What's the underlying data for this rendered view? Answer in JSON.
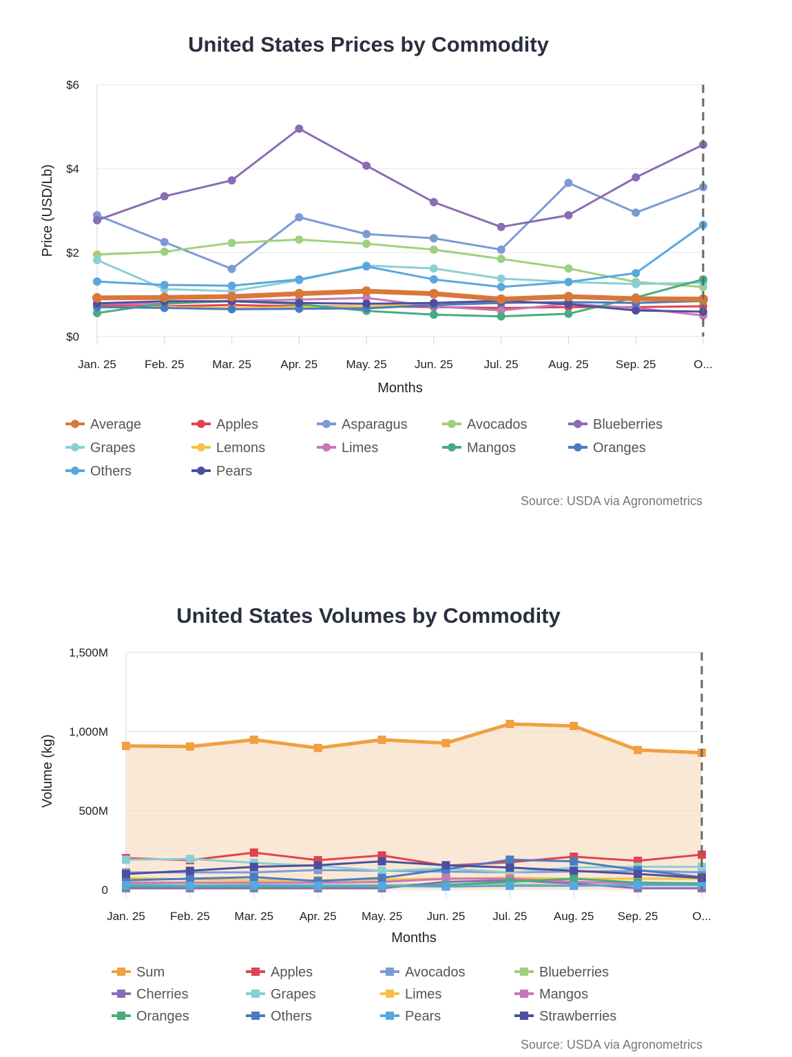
{
  "chart_data": [
    {
      "type": "line",
      "title": "United States Prices by Commodity",
      "xlabel": "Months",
      "ylabel": "Price (USD/Lb)",
      "categories": [
        "Jan. 25",
        "Feb. 25",
        "Mar. 25",
        "Apr. 25",
        "May. 25",
        "Jun. 25",
        "Jul. 25",
        "Aug. 25",
        "Sep. 25",
        "O..."
      ],
      "ylim": [
        0,
        6
      ],
      "yticks": [
        "$0",
        "$2",
        "$4",
        "$6"
      ],
      "ytick_values": [
        0,
        2,
        4,
        6
      ],
      "grid": true,
      "legend": "bottom",
      "source": "Source: USDA via Agronometrics",
      "series": [
        {
          "name": "Average",
          "color": "#d9773a",
          "values": [
            0.92,
            0.93,
            0.95,
            1.02,
            1.08,
            1.02,
            0.89,
            0.95,
            0.9,
            0.89
          ]
        },
        {
          "name": "Apples",
          "color": "#e0434f",
          "values": [
            0.75,
            0.72,
            0.75,
            0.72,
            0.72,
            0.7,
            0.68,
            0.7,
            0.7,
            0.72
          ]
        },
        {
          "name": "Asparagus",
          "color": "#7b9bd3",
          "values": [
            2.89,
            2.25,
            1.61,
            2.84,
            2.44,
            2.34,
            2.07,
            3.66,
            2.95,
            3.56
          ]
        },
        {
          "name": "Avocados",
          "color": "#a0cf7d",
          "values": [
            1.95,
            2.02,
            2.23,
            2.31,
            2.21,
            2.07,
            1.85,
            1.62,
            1.3,
            1.18
          ]
        },
        {
          "name": "Blueberries",
          "color": "#8a6bb5",
          "values": [
            2.77,
            3.34,
            3.72,
            4.95,
            4.07,
            3.2,
            2.61,
            2.89,
            3.79,
            4.57
          ]
        },
        {
          "name": "Grapes",
          "color": "#89cfd6",
          "values": [
            1.82,
            1.13,
            1.08,
            1.34,
            1.69,
            1.62,
            1.38,
            1.3,
            1.25,
            1.28
          ]
        },
        {
          "name": "Lemons",
          "color": "#f5c242",
          "values": [
            0.7,
            0.7,
            0.68,
            0.7,
            0.72,
            0.78,
            0.8,
            0.82,
            0.8,
            0.84
          ]
        },
        {
          "name": "Limes",
          "color": "#c877b5",
          "values": [
            0.78,
            0.78,
            0.85,
            0.88,
            0.92,
            0.72,
            0.62,
            0.78,
            0.68,
            0.5
          ]
        },
        {
          "name": "Mangos",
          "color": "#47ad7e",
          "values": [
            0.56,
            0.79,
            0.84,
            0.77,
            0.61,
            0.52,
            0.48,
            0.54,
            0.93,
            1.36
          ]
        },
        {
          "name": "Oranges",
          "color": "#4a7cc1",
          "values": [
            0.7,
            0.68,
            0.65,
            0.66,
            0.67,
            0.75,
            0.8,
            0.82,
            0.8,
            0.85
          ]
        },
        {
          "name": "Others",
          "color": "#5aa6de",
          "values": [
            1.31,
            1.23,
            1.21,
            1.36,
            1.67,
            1.36,
            1.18,
            1.3,
            1.51,
            2.66
          ]
        },
        {
          "name": "Pears",
          "color": "#4e4ea0",
          "values": [
            0.79,
            0.84,
            0.84,
            0.8,
            0.78,
            0.8,
            0.85,
            0.77,
            0.62,
            0.59
          ]
        }
      ]
    },
    {
      "type": "line",
      "title": "United States Volumes by Commodity",
      "xlabel": "Months",
      "ylabel": "Volume (kg)",
      "categories": [
        "Jan. 25",
        "Feb. 25",
        "Mar. 25",
        "Apr. 25",
        "May. 25",
        "Jun. 25",
        "Jul. 25",
        "Aug. 25",
        "Sep. 25",
        "O..."
      ],
      "ylim": [
        0,
        1500
      ],
      "yticks": [
        "0",
        "500M",
        "1,000M",
        "1,500M"
      ],
      "ytick_values": [
        0,
        500,
        1000,
        1500
      ],
      "yunit": "M",
      "grid": true,
      "legend": "bottom",
      "source": "Source: USDA via Agronometrics",
      "series": [
        {
          "name": "Sum",
          "color": "#f0a040",
          "area": true,
          "values": [
            909,
            905,
            948,
            896,
            948,
            927,
            1048,
            1035,
            883,
            866
          ]
        },
        {
          "name": "Apples",
          "color": "#e0434f",
          "values": [
            200,
            187,
            235,
            187,
            217,
            152,
            174,
            209,
            183,
            222
          ]
        },
        {
          "name": "Avocados",
          "color": "#7b9bd3",
          "values": [
            110,
            110,
            110,
            125,
            120,
            115,
            110,
            115,
            120,
            110
          ]
        },
        {
          "name": "Blueberries",
          "color": "#a0cf7d",
          "values": [
            35,
            30,
            30,
            30,
            30,
            35,
            35,
            30,
            30,
            30
          ]
        },
        {
          "name": "Cherries",
          "color": "#8a6bb5",
          "values": [
            10,
            10,
            10,
            10,
            10,
            50,
            60,
            40,
            10,
            10
          ]
        },
        {
          "name": "Grapes",
          "color": "#89cfd6",
          "values": [
            190,
            195,
            170,
            150,
            120,
            135,
            110,
            140,
            145,
            145
          ]
        },
        {
          "name": "Limes",
          "color": "#f5c242",
          "values": [
            75,
            65,
            60,
            60,
            65,
            70,
            75,
            70,
            70,
            70
          ]
        },
        {
          "name": "Mangos",
          "color": "#c877b5",
          "values": [
            45,
            45,
            45,
            45,
            50,
            70,
            70,
            50,
            40,
            30
          ]
        },
        {
          "name": "Oranges",
          "color": "#47ad7e",
          "values": [
            20,
            20,
            20,
            20,
            20,
            30,
            50,
            70,
            45,
            40
          ]
        },
        {
          "name": "Others",
          "color": "#4a7cc1",
          "values": [
            60,
            70,
            80,
            55,
            75,
            130,
            190,
            180,
            125,
            80
          ]
        },
        {
          "name": "Pears",
          "color": "#5aa6de",
          "values": [
            30,
            25,
            30,
            25,
            25,
            20,
            25,
            25,
            30,
            30
          ]
        },
        {
          "name": "Strawberries",
          "color": "#4e4ea0",
          "values": [
            100,
            120,
            145,
            155,
            180,
            155,
            140,
            120,
            100,
            75
          ]
        }
      ]
    }
  ]
}
